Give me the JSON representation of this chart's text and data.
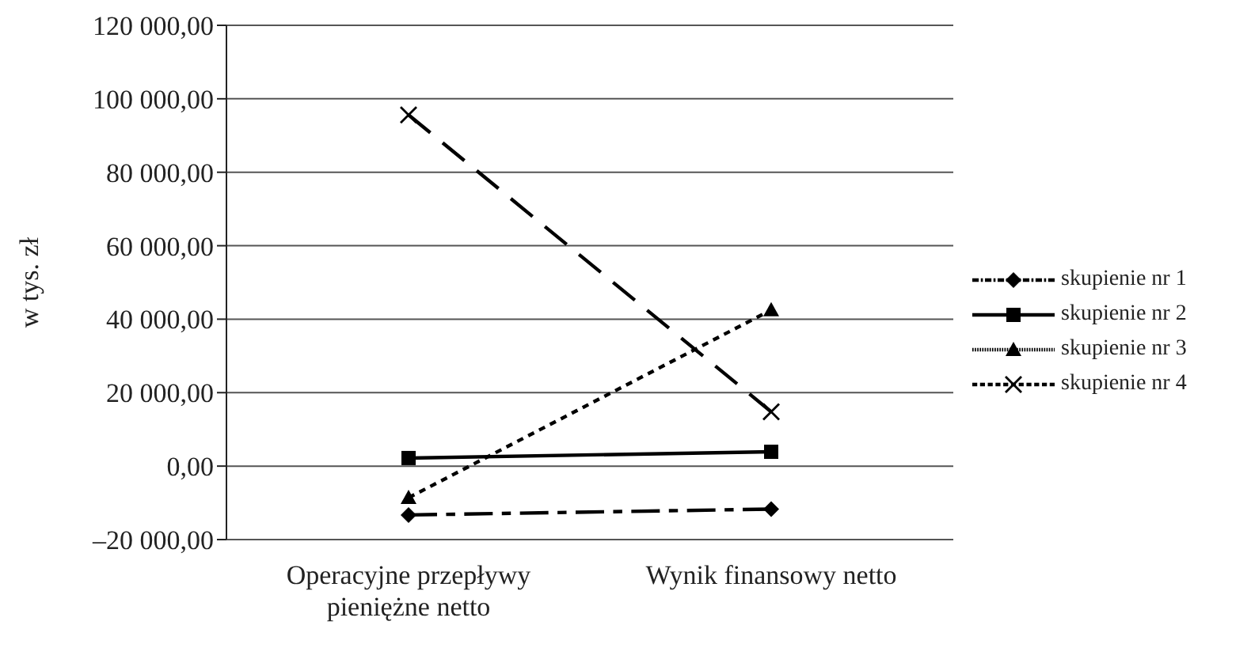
{
  "chart_data": {
    "type": "line",
    "ylabel": "w tys. zł",
    "categories": [
      "Operacyjne przepływy pieniężne netto",
      "Wynik finansowy netto"
    ],
    "series": [
      {
        "name": "skupienie nr 1",
        "color": "#000000",
        "values": [
          -13300,
          -11700
        ],
        "line_style": "dashed",
        "marker": "diamond"
      },
      {
        "name": "skupienie nr 2",
        "color": "#000000",
        "values": [
          2200,
          3900
        ],
        "line_style": "solid",
        "marker": "square"
      },
      {
        "name": "skupienie nr 3",
        "color": "#000000",
        "values": [
          -8600,
          42500
        ],
        "line_style": "dotted",
        "marker": "triangle"
      },
      {
        "name": "skupienie nr 4",
        "color": "#000000",
        "values": [
          95600,
          14800
        ],
        "line_style": "dashed",
        "marker": "cross"
      }
    ],
    "ylim": [
      -20000,
      120000
    ],
    "yticks": [
      {
        "value": -20000,
        "label": "–20 000,00"
      },
      {
        "value": 0,
        "label": "0,00"
      },
      {
        "value": 20000,
        "label": "20 000,00"
      },
      {
        "value": 40000,
        "label": "40 000,00"
      },
      {
        "value": 60000,
        "label": "60 000,00"
      },
      {
        "value": 80000,
        "label": "80 000,00"
      },
      {
        "value": 100000,
        "label": "100 000,00"
      },
      {
        "value": 120000,
        "label": "120 000,00"
      }
    ],
    "grid": "y",
    "legend": "right"
  }
}
